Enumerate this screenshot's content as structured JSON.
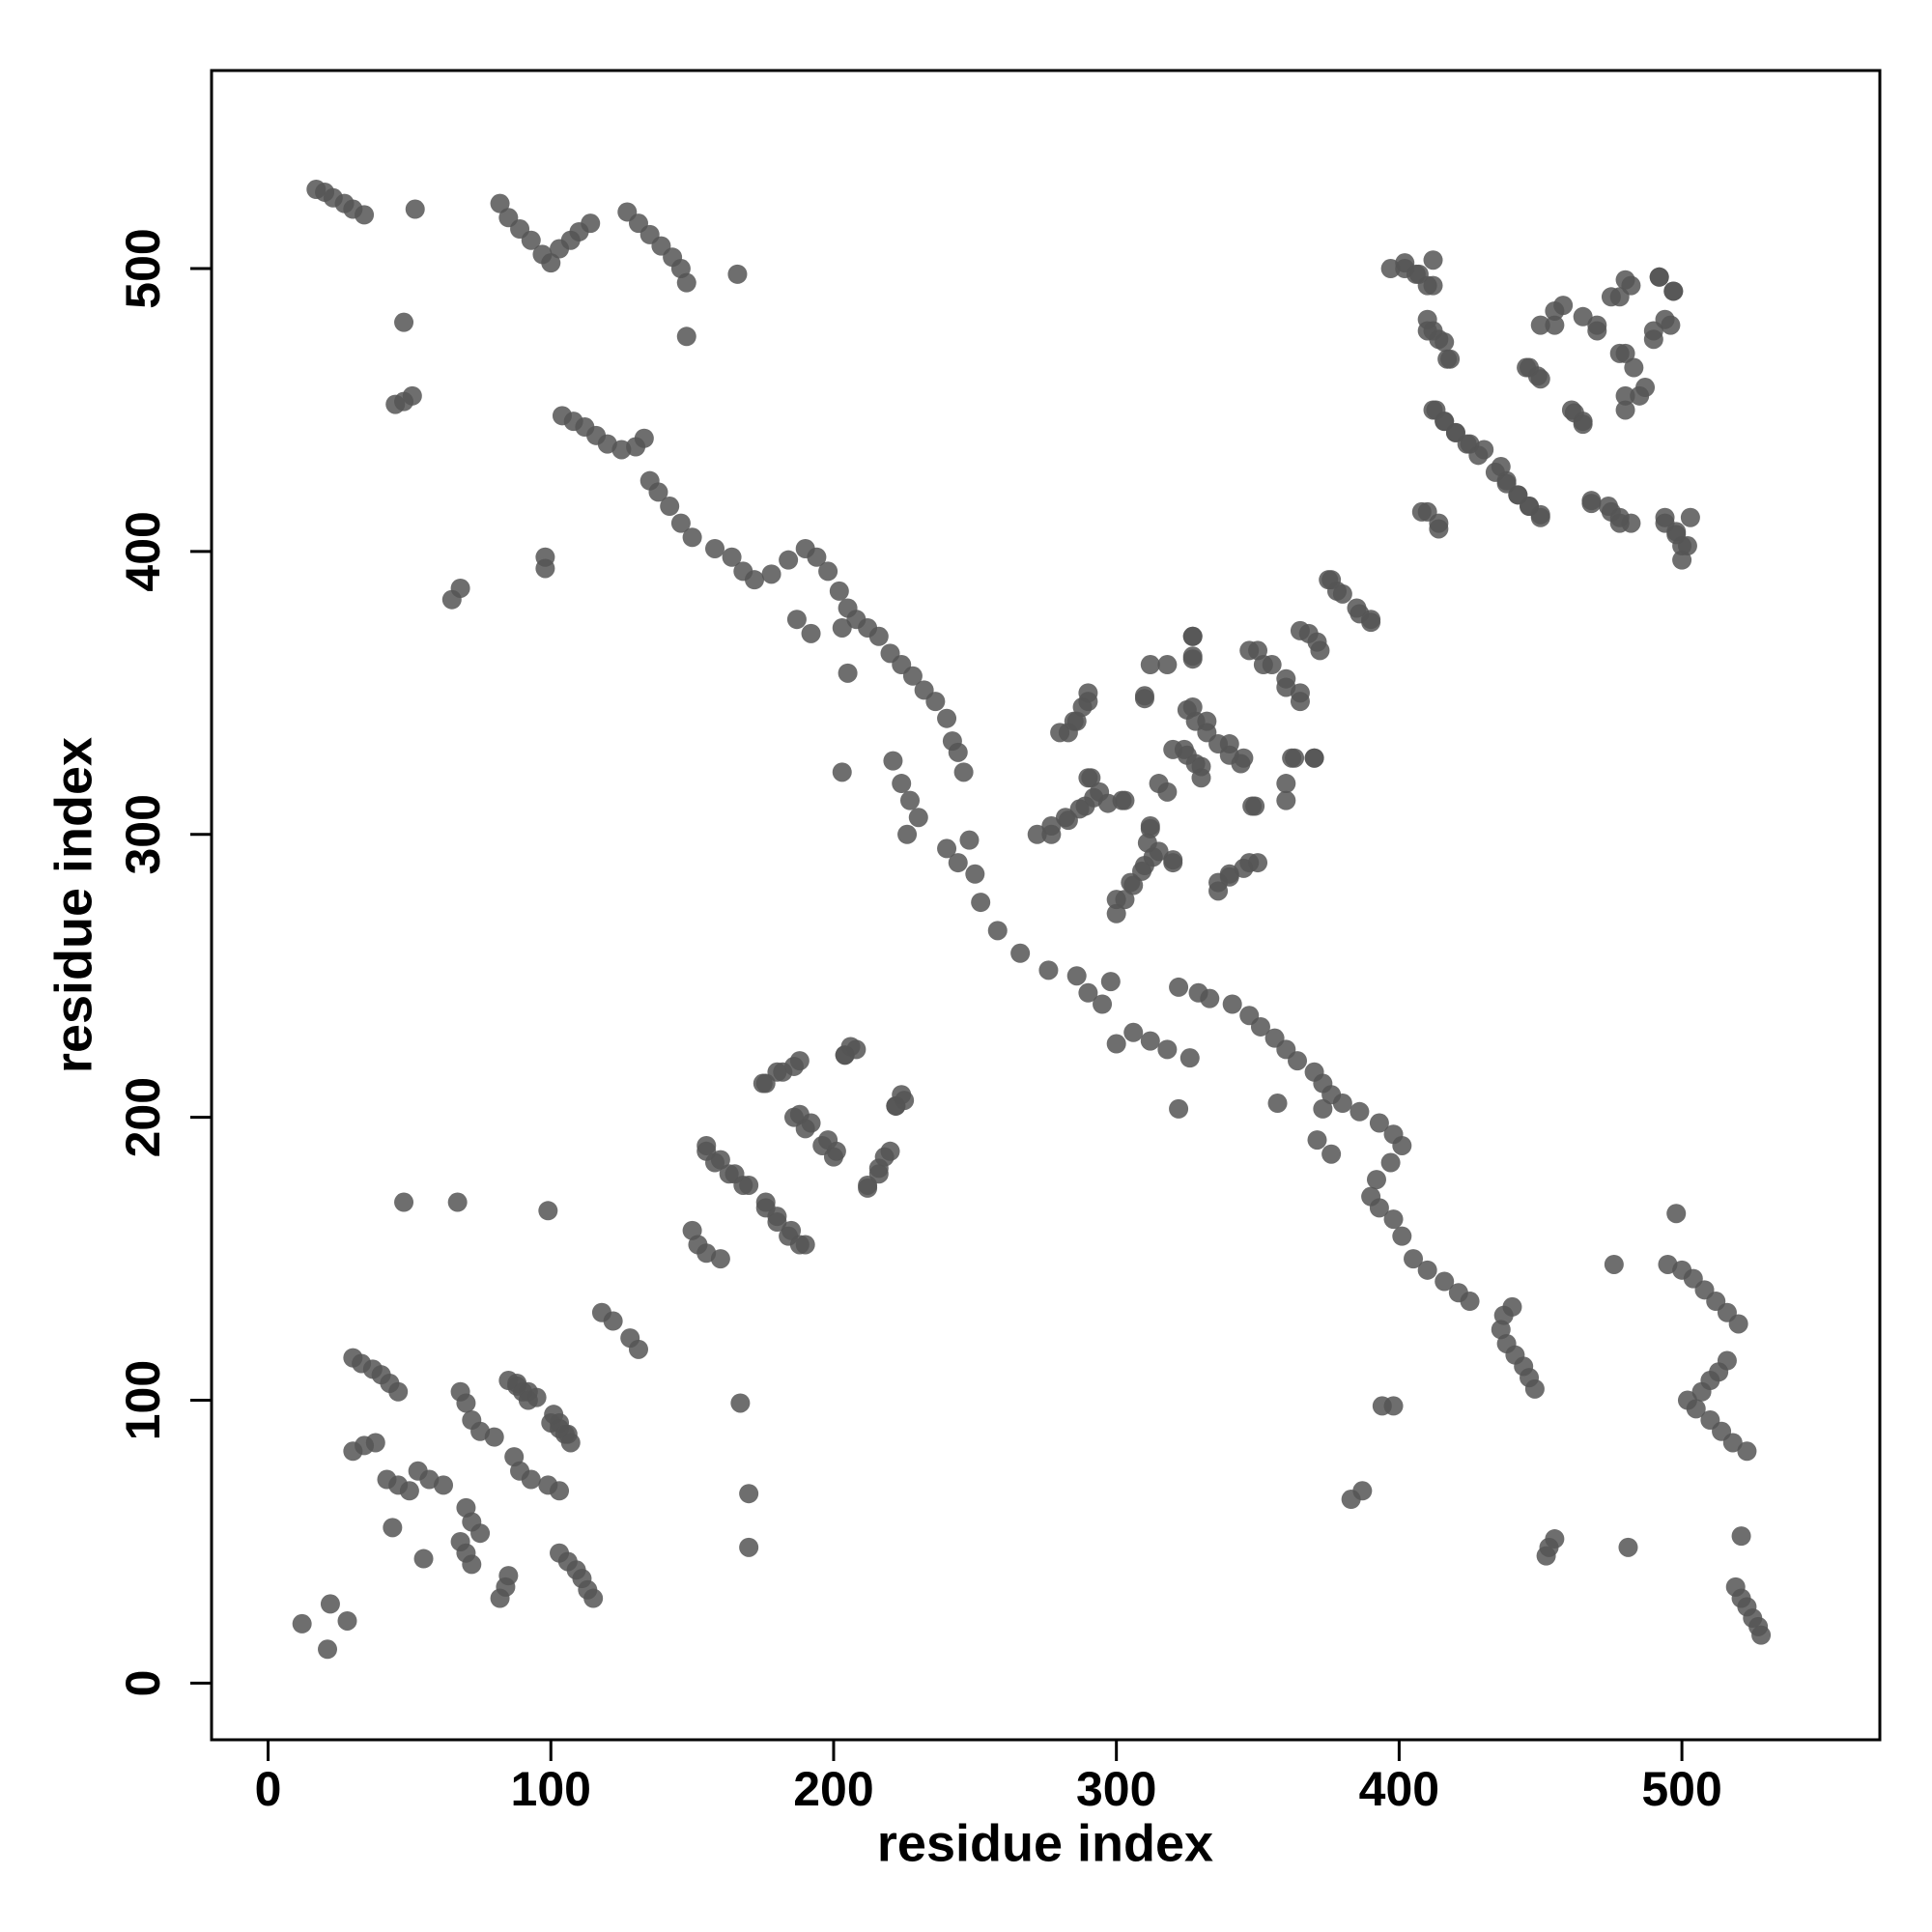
{
  "chart_data": {
    "type": "scatter",
    "xlabel": "residue index",
    "ylabel": "residue index",
    "xlim": [
      -20,
      570
    ],
    "ylim": [
      -20,
      570
    ],
    "xticks": [
      0,
      100,
      200,
      300,
      400,
      500
    ],
    "yticks": [
      0,
      100,
      200,
      300,
      400,
      500
    ],
    "color": "#555555",
    "x": [
      17,
      20,
      23,
      27,
      30,
      34,
      52,
      48,
      45,
      48,
      51,
      82,
      85,
      89,
      93,
      97,
      100,
      103,
      107,
      110,
      114,
      127,
      131,
      135,
      139,
      143,
      146,
      148,
      166,
      148,
      68,
      65,
      98,
      98,
      104,
      108,
      112,
      116,
      120,
      125,
      130,
      133,
      135,
      138,
      142,
      146,
      150,
      158,
      164,
      168,
      172,
      178,
      184,
      190,
      194,
      198,
      202,
      205,
      208,
      212,
      216,
      220,
      224,
      228,
      232,
      236,
      240,
      242,
      244,
      246,
      187,
      192,
      203,
      205,
      203,
      221,
      224,
      227,
      230,
      226,
      240,
      244,
      248,
      250,
      252,
      258,
      272,
      277,
      282,
      287,
      292,
      297,
      302,
      290,
      283,
      286,
      290,
      300,
      305,
      310,
      315,
      320,
      312,
      320,
      325,
      330,
      318,
      327,
      327,
      318,
      310,
      325,
      328,
      332,
      340,
      345,
      336,
      340,
      345,
      350,
      348,
      360,
      350,
      355,
      360,
      365,
      362,
      370,
      368,
      372,
      376,
      380,
      386,
      390,
      397,
      402,
      406,
      410,
      412,
      410,
      414,
      418,
      412,
      416,
      420,
      425,
      430,
      434,
      438,
      442,
      446,
      450,
      410,
      414,
      445,
      450,
      455,
      458,
      462,
      465,
      470,
      475,
      480,
      478,
      483,
      485,
      490,
      494,
      497,
      492,
      480,
      468,
      474,
      478,
      482,
      494,
      498,
      500,
      30,
      33,
      37,
      40,
      43,
      46,
      30,
      34,
      38,
      42,
      46,
      50,
      44,
      68,
      70,
      72,
      75,
      80,
      85,
      88,
      92,
      95,
      100,
      103,
      106,
      53,
      57,
      62,
      12,
      22,
      48,
      67,
      99,
      150,
      155,
      155,
      160,
      165,
      170,
      176,
      180,
      184,
      188,
      175,
      180,
      186,
      188,
      192,
      196,
      200,
      204,
      208,
      212,
      216,
      220,
      222,
      225,
      118,
      122,
      528,
      527,
      525,
      523,
      521,
      519,
      521,
      481,
      452,
      453,
      455,
      523,
      518,
      514,
      510,
      505,
      502,
      507,
      510,
      513,
      516,
      520,
      516,
      512,
      508,
      504,
      500,
      495,
      498,
      476,
      387,
      383,
      398,
      394,
      448,
      446,
      444,
      441,
      438,
      436,
      437,
      440,
      425,
      421,
      416,
      410,
      405,
      401,
      398,
      393,
      390,
      392,
      397,
      401,
      398,
      393,
      386,
      380,
      376,
      373,
      370,
      364,
      360,
      356,
      351,
      347,
      341,
      333,
      329,
      322,
      376,
      371,
      373,
      357,
      322,
      326,
      318,
      312,
      306,
      300,
      295,
      290,
      298,
      286,
      276,
      266,
      300,
      303,
      306,
      309,
      313,
      311,
      312,
      320,
      336,
      340,
      347,
      277,
      283,
      289,
      294,
      291,
      303,
      330,
      328,
      324,
      315,
      370,
      363,
      360,
      349,
      344,
      340,
      336,
      332,
      327,
      280,
      285,
      288,
      290,
      310,
      312,
      365,
      360,
      352,
      347,
      327,
      327,
      371,
      365,
      390,
      385,
      378,
      375,
      500,
      502,
      498,
      494,
      503,
      478,
      475,
      468,
      450,
      446,
      442,
      438,
      436,
      428,
      424,
      420,
      416,
      413,
      414,
      408,
      465,
      461,
      480,
      487,
      449,
      446,
      480,
      490,
      496,
      470,
      465,
      455,
      478,
      482,
      492,
      497,
      450,
      417,
      416,
      412,
      410,
      412,
      407,
      402,
      115,
      113,
      111,
      109,
      106,
      103,
      82,
      84,
      85,
      72,
      70,
      68,
      55,
      103,
      99,
      93,
      89,
      87,
      107,
      105,
      103,
      101,
      92,
      90,
      88,
      75,
      72,
      70,
      21,
      28,
      170,
      170,
      167,
      160,
      152,
      190,
      185,
      180,
      176,
      168,
      163,
      158,
      155,
      212,
      216,
      218,
      201,
      198,
      190,
      186,
      222,
      224,
      176,
      182,
      188,
      204,
      206,
      131,
      128
    ],
    "values": [
      528,
      527,
      525,
      523,
      521,
      519,
      521,
      481,
      452,
      453,
      455,
      523,
      518,
      514,
      510,
      505,
      502,
      507,
      510,
      513,
      516,
      520,
      516,
      512,
      508,
      504,
      500,
      495,
      498,
      476,
      387,
      383,
      398,
      394,
      448,
      446,
      444,
      441,
      438,
      436,
      437,
      440,
      425,
      421,
      416,
      410,
      405,
      401,
      398,
      393,
      390,
      392,
      397,
      401,
      398,
      393,
      386,
      380,
      376,
      373,
      370,
      364,
      360,
      356,
      351,
      347,
      341,
      333,
      329,
      322,
      376,
      371,
      373,
      357,
      322,
      326,
      318,
      312,
      306,
      300,
      295,
      290,
      298,
      286,
      276,
      266,
      300,
      303,
      306,
      309,
      313,
      311,
      312,
      320,
      336,
      340,
      347,
      277,
      283,
      289,
      294,
      291,
      303,
      330,
      328,
      324,
      315,
      370,
      363,
      360,
      349,
      344,
      340,
      336,
      332,
      327,
      280,
      285,
      288,
      290,
      310,
      312,
      365,
      360,
      352,
      347,
      327,
      327,
      371,
      365,
      390,
      385,
      378,
      375,
      500,
      502,
      498,
      494,
      503,
      478,
      475,
      468,
      450,
      446,
      442,
      438,
      436,
      428,
      424,
      420,
      416,
      413,
      414,
      408,
      465,
      461,
      480,
      487,
      449,
      446,
      480,
      490,
      496,
      470,
      465,
      455,
      478,
      482,
      492,
      497,
      450,
      417,
      416,
      412,
      410,
      412,
      407,
      402,
      115,
      113,
      111,
      109,
      106,
      103,
      82,
      84,
      85,
      72,
      70,
      68,
      55,
      103,
      99,
      93,
      89,
      87,
      107,
      105,
      103,
      101,
      92,
      90,
      88,
      75,
      72,
      70,
      21,
      28,
      170,
      170,
      167,
      160,
      152,
      190,
      185,
      180,
      176,
      168,
      163,
      158,
      155,
      212,
      216,
      218,
      201,
      198,
      190,
      186,
      222,
      224,
      176,
      182,
      188,
      204,
      206,
      131,
      128,
      17,
      20,
      23,
      27,
      30,
      34,
      52,
      48,
      45,
      48,
      51,
      82,
      85,
      89,
      93,
      97,
      100,
      103,
      107,
      110,
      114,
      127,
      131,
      135,
      139,
      143,
      146,
      148,
      166,
      148,
      68,
      65,
      98,
      98,
      104,
      108,
      112,
      116,
      120,
      125,
      130,
      133,
      135,
      138,
      142,
      146,
      150,
      158,
      164,
      168,
      172,
      178,
      184,
      190,
      194,
      198,
      202,
      205,
      208,
      212,
      216,
      220,
      224,
      228,
      232,
      236,
      240,
      242,
      244,
      246,
      187,
      192,
      203,
      205,
      203,
      221,
      224,
      227,
      230,
      226,
      240,
      244,
      248,
      250,
      252,
      258,
      272,
      277,
      282,
      287,
      292,
      297,
      302,
      290,
      283,
      286,
      290,
      300,
      305,
      310,
      315,
      320,
      312,
      320,
      325,
      330,
      318,
      327,
      327,
      318,
      310,
      325,
      328,
      332,
      340,
      345,
      336,
      340,
      345,
      350,
      348,
      360,
      350,
      355,
      360,
      365,
      362,
      370,
      368,
      372,
      376,
      380,
      386,
      390,
      397,
      402,
      406,
      410,
      412,
      410,
      414,
      418,
      412,
      416,
      420,
      425,
      430,
      434,
      438,
      442,
      446,
      450,
      410,
      414,
      445,
      450,
      455,
      458,
      462,
      465,
      470,
      475,
      480,
      478,
      483,
      485,
      490,
      494,
      497,
      492,
      480,
      468,
      474,
      478,
      482,
      494,
      498,
      500,
      30,
      33,
      37,
      40,
      43,
      46,
      30,
      34,
      38,
      42,
      46,
      50,
      44,
      68,
      70,
      72,
      75,
      80,
      85,
      88,
      92,
      95,
      100,
      103,
      106,
      53,
      57,
      62,
      12,
      22,
      48,
      67,
      99,
      150,
      155,
      155,
      160,
      165,
      170,
      176,
      180,
      184,
      188,
      175,
      180,
      186,
      188,
      192,
      196,
      200,
      204,
      208,
      212,
      216,
      220,
      222,
      225,
      118,
      122
    ]
  }
}
